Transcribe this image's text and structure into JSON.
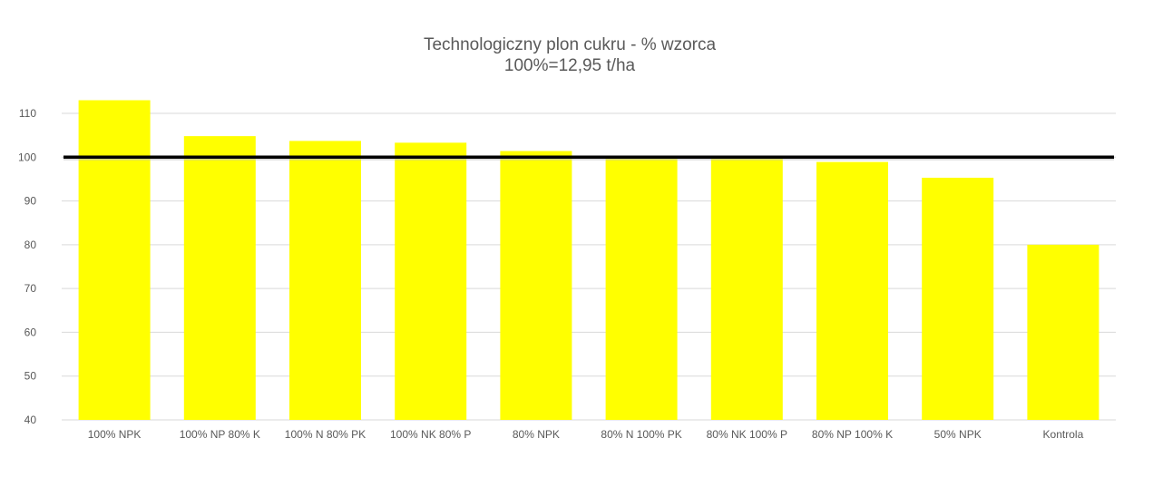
{
  "chart_data": {
    "type": "bar",
    "title": "Technologiczny plon cukru - % wzorca",
    "subtitle": "100%=12,95 t/ha",
    "categories": [
      "100% NPK",
      "100% NP 80% K",
      "100% N 80% PK",
      "100% NK 80% P",
      "80% NPK",
      "80% N 100% PK",
      "80% NK 100% P",
      "80% NP 100% K",
      "50% NPK",
      "Kontrola"
    ],
    "values": [
      113,
      104.8,
      103.7,
      103.3,
      101.4,
      99.8,
      99.8,
      98.9,
      95.3,
      80
    ],
    "ylim": [
      40,
      115
    ],
    "yticks": [
      40,
      50,
      60,
      70,
      80,
      90,
      100,
      110
    ],
    "reference_line": 100,
    "grid": true,
    "legend": "none",
    "colors": {
      "bar": "#ffff00",
      "reference_line": "#000000",
      "grid": "#d9d9d9",
      "text": "#595959"
    }
  }
}
